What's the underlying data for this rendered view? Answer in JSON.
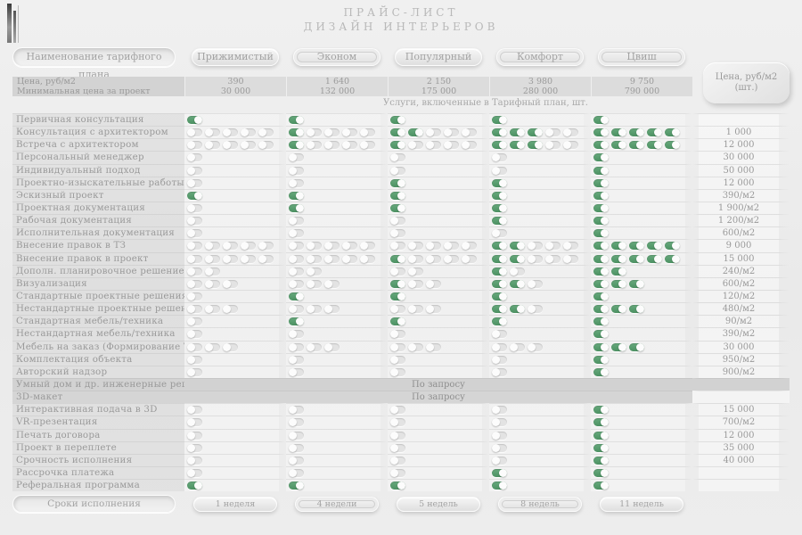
{
  "title": {
    "line1": "ПРАЙС-ЛИСТ",
    "line2": "ДИЗАЙН ИНТЕРЬЕРОВ"
  },
  "header": {
    "name_label": "Наименование тарифного плана",
    "plans": [
      "Прижимистый",
      "Эконом",
      "Популярный",
      "Комфорт",
      "Цвиш"
    ],
    "price_box": "Цена, руб/м2 (шт.)"
  },
  "price_rows": [
    {
      "label": "Цена, руб/м2",
      "values": [
        "390",
        "1 640",
        "2 150",
        "3 980",
        "9 750"
      ]
    },
    {
      "label": "Минимальная цена за проект",
      "values": [
        "30 000",
        "132 000",
        "175 000",
        "280 000",
        "790 000"
      ]
    }
  ],
  "section_note": "Услуги, включенные в Тарифный план, шт.",
  "services": [
    {
      "label": "Первичная консультация",
      "t": [
        [
          1,
          1
        ],
        [
          1,
          1
        ],
        [
          1,
          1
        ],
        [
          1,
          1
        ],
        [
          1,
          1
        ]
      ],
      "price": ""
    },
    {
      "label": "Консультация с архитектором",
      "t": [
        [
          0,
          5
        ],
        [
          1,
          5
        ],
        [
          2,
          5
        ],
        [
          3,
          5
        ],
        [
          5,
          5
        ]
      ],
      "price": "1 000"
    },
    {
      "label": "Встреча с архитектором",
      "t": [
        [
          0,
          5
        ],
        [
          1,
          5
        ],
        [
          1,
          5
        ],
        [
          3,
          5
        ],
        [
          5,
          5
        ]
      ],
      "price": "12 000"
    },
    {
      "label": "Персональный менеджер",
      "t": [
        [
          0,
          1
        ],
        [
          0,
          1
        ],
        [
          0,
          1
        ],
        [
          0,
          1
        ],
        [
          1,
          1
        ]
      ],
      "price": "30 000"
    },
    {
      "label": "Индивидуальный подход",
      "t": [
        [
          0,
          1
        ],
        [
          0,
          1
        ],
        [
          0,
          1
        ],
        [
          0,
          1
        ],
        [
          1,
          1
        ]
      ],
      "price": "50 000"
    },
    {
      "label": "Проектно-изыскательные работы",
      "t": [
        [
          0,
          1
        ],
        [
          0,
          1
        ],
        [
          1,
          1
        ],
        [
          1,
          1
        ],
        [
          1,
          1
        ]
      ],
      "price": "12 000"
    },
    {
      "label": "Эскизный проект",
      "t": [
        [
          1,
          1
        ],
        [
          1,
          1
        ],
        [
          1,
          1
        ],
        [
          1,
          1
        ],
        [
          1,
          1
        ]
      ],
      "price": "390/м2"
    },
    {
      "label": "Проектная документация",
      "t": [
        [
          0,
          1
        ],
        [
          1,
          1
        ],
        [
          1,
          1
        ],
        [
          1,
          1
        ],
        [
          1,
          1
        ]
      ],
      "price": "1 900/м2"
    },
    {
      "label": "Рабочая документация",
      "t": [
        [
          0,
          1
        ],
        [
          0,
          1
        ],
        [
          0,
          1
        ],
        [
          1,
          1
        ],
        [
          1,
          1
        ]
      ],
      "price": "1 200/м2"
    },
    {
      "label": "Исполнительная документация",
      "t": [
        [
          0,
          1
        ],
        [
          0,
          1
        ],
        [
          0,
          1
        ],
        [
          0,
          1
        ],
        [
          1,
          1
        ]
      ],
      "price": "600/м2"
    },
    {
      "label": "Внесение правок в ТЗ",
      "t": [
        [
          0,
          5
        ],
        [
          0,
          5
        ],
        [
          0,
          5
        ],
        [
          2,
          5
        ],
        [
          5,
          5
        ]
      ],
      "price": "9 000"
    },
    {
      "label": "Внесение правок в проект",
      "t": [
        [
          0,
          5
        ],
        [
          0,
          5
        ],
        [
          1,
          5
        ],
        [
          2,
          5
        ],
        [
          5,
          5
        ]
      ],
      "price": "15 000"
    },
    {
      "label": "Дополн. планировочное решение",
      "t": [
        [
          0,
          2
        ],
        [
          0,
          2
        ],
        [
          0,
          2
        ],
        [
          1,
          2
        ],
        [
          2,
          2
        ]
      ],
      "price": "240/м2"
    },
    {
      "label": "Визуализация",
      "t": [
        [
          0,
          3
        ],
        [
          0,
          3
        ],
        [
          1,
          3
        ],
        [
          2,
          3
        ],
        [
          3,
          3
        ]
      ],
      "price": "600/м2"
    },
    {
      "label": "Стандартные проектные решения",
      "t": [
        [
          0,
          1
        ],
        [
          1,
          1
        ],
        [
          1,
          1
        ],
        [
          1,
          1
        ],
        [
          1,
          1
        ]
      ],
      "price": "120/м2"
    },
    {
      "label": "Нестандартные проектные решения",
      "t": [
        [
          0,
          3
        ],
        [
          0,
          3
        ],
        [
          0,
          3
        ],
        [
          2,
          3
        ],
        [
          3,
          3
        ]
      ],
      "price": "480/м2"
    },
    {
      "label": "Стандартная мебель/техника",
      "t": [
        [
          0,
          1
        ],
        [
          1,
          1
        ],
        [
          1,
          1
        ],
        [
          1,
          1
        ],
        [
          1,
          1
        ]
      ],
      "price": "90/м2"
    },
    {
      "label": "Нестандартная мебель/техника",
      "t": [
        [
          0,
          1
        ],
        [
          0,
          1
        ],
        [
          0,
          1
        ],
        [
          0,
          1
        ],
        [
          1,
          1
        ]
      ],
      "price": "390/м2"
    },
    {
      "label": "Мебель на заказ (Формирование ТЗ)",
      "t": [
        [
          0,
          3
        ],
        [
          0,
          3
        ],
        [
          0,
          3
        ],
        [
          0,
          3
        ],
        [
          3,
          3
        ]
      ],
      "price": "30 000"
    },
    {
      "label": "Комплектация объекта",
      "t": [
        [
          0,
          1
        ],
        [
          0,
          1
        ],
        [
          0,
          1
        ],
        [
          0,
          1
        ],
        [
          1,
          1
        ]
      ],
      "price": "950/м2"
    },
    {
      "label": "Авторский надзор",
      "t": [
        [
          0,
          1
        ],
        [
          0,
          1
        ],
        [
          0,
          1
        ],
        [
          0,
          1
        ],
        [
          1,
          1
        ]
      ],
      "price": "900/м2"
    },
    {
      "label": "Умный дом и др. инженерные решения",
      "note": "По запросу",
      "band": "full",
      "price": ""
    },
    {
      "label": "3D-макет",
      "note": "По запросу",
      "band": "partial",
      "price": ""
    },
    {
      "label": "Интерактивная подача в 3D",
      "t": [
        [
          0,
          1
        ],
        [
          0,
          1
        ],
        [
          0,
          1
        ],
        [
          0,
          1
        ],
        [
          1,
          1
        ]
      ],
      "price": "15 000"
    },
    {
      "label": "VR-презентация",
      "t": [
        [
          0,
          1
        ],
        [
          0,
          1
        ],
        [
          0,
          1
        ],
        [
          0,
          1
        ],
        [
          1,
          1
        ]
      ],
      "price": "700/м2"
    },
    {
      "label": "Печать договора",
      "t": [
        [
          0,
          1
        ],
        [
          0,
          1
        ],
        [
          0,
          1
        ],
        [
          0,
          1
        ],
        [
          1,
          1
        ]
      ],
      "price": "12 000"
    },
    {
      "label": "Проект в переплете",
      "t": [
        [
          0,
          1
        ],
        [
          0,
          1
        ],
        [
          0,
          1
        ],
        [
          0,
          1
        ],
        [
          1,
          1
        ]
      ],
      "price": "35 000"
    },
    {
      "label": "Срочность исполнения",
      "t": [
        [
          0,
          1
        ],
        [
          0,
          1
        ],
        [
          0,
          1
        ],
        [
          0,
          1
        ],
        [
          1,
          1
        ]
      ],
      "price": "40 000"
    },
    {
      "label": "Рассрочка платежа",
      "t": [
        [
          0,
          1
        ],
        [
          0,
          1
        ],
        [
          0,
          1
        ],
        [
          1,
          1
        ],
        [
          1,
          1
        ]
      ],
      "price": ""
    },
    {
      "label": "Реферальная программа",
      "t": [
        [
          1,
          1
        ],
        [
          1,
          1
        ],
        [
          1,
          1
        ],
        [
          1,
          1
        ],
        [
          1,
          1
        ]
      ],
      "price": ""
    }
  ],
  "footer": {
    "label": "Сроки исполнения",
    "values": [
      "1 неделя",
      "4 недели",
      "5 недель",
      "8 недель",
      "11 недель"
    ]
  },
  "colors": {
    "toggle_on": "#55a06c",
    "band_gray": "#d2d2d2",
    "text_gray": "#9a9a9a"
  }
}
